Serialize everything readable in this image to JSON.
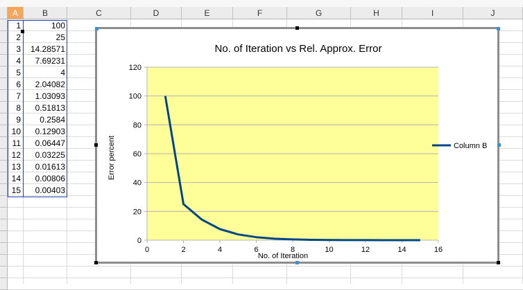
{
  "columns": [
    "A",
    "B",
    "C",
    "D",
    "E",
    "F",
    "G",
    "H",
    "I",
    "J"
  ],
  "rows": [
    {
      "a": "1",
      "b": "100"
    },
    {
      "a": "2",
      "b": "25"
    },
    {
      "a": "3",
      "b": "14.28571"
    },
    {
      "a": "4",
      "b": "7.69231"
    },
    {
      "a": "5",
      "b": "4"
    },
    {
      "a": "6",
      "b": "2.04082"
    },
    {
      "a": "7",
      "b": "1.03093"
    },
    {
      "a": "8",
      "b": "0.51813"
    },
    {
      "a": "9",
      "b": "0.2584"
    },
    {
      "a": "10",
      "b": "0.12903"
    },
    {
      "a": "11",
      "b": "0.06447"
    },
    {
      "a": "12",
      "b": "0.03225"
    },
    {
      "a": "13",
      "b": "0.01613"
    },
    {
      "a": "14",
      "b": "0.00806"
    },
    {
      "a": "15",
      "b": "0.00403"
    }
  ],
  "colors": {
    "plot_bg": "#ffff99",
    "line": "#004586",
    "selection": "#1f3fae",
    "active_header": "#f5a65b"
  },
  "chart_data": {
    "type": "line",
    "title": "No. of Iteration vs Rel. Approx. Error",
    "xlabel": "No. of Iteration",
    "ylabel": "Error percent",
    "xlim": [
      0,
      16
    ],
    "ylim": [
      0,
      120
    ],
    "xticks": [
      "0",
      "2",
      "4",
      "6",
      "8",
      "10",
      "12",
      "14",
      "16"
    ],
    "yticks": [
      "0",
      "20",
      "40",
      "60",
      "80",
      "100",
      "120"
    ],
    "legend_position": "right",
    "series": [
      {
        "name": "Column B",
        "x": [
          1,
          2,
          3,
          4,
          5,
          6,
          7,
          8,
          9,
          10,
          11,
          12,
          13,
          14,
          15
        ],
        "values": [
          100,
          25,
          14.28571,
          7.69231,
          4,
          2.04082,
          1.03093,
          0.51813,
          0.2584,
          0.12903,
          0.06447,
          0.03225,
          0.01613,
          0.00806,
          0.00403
        ]
      }
    ]
  }
}
